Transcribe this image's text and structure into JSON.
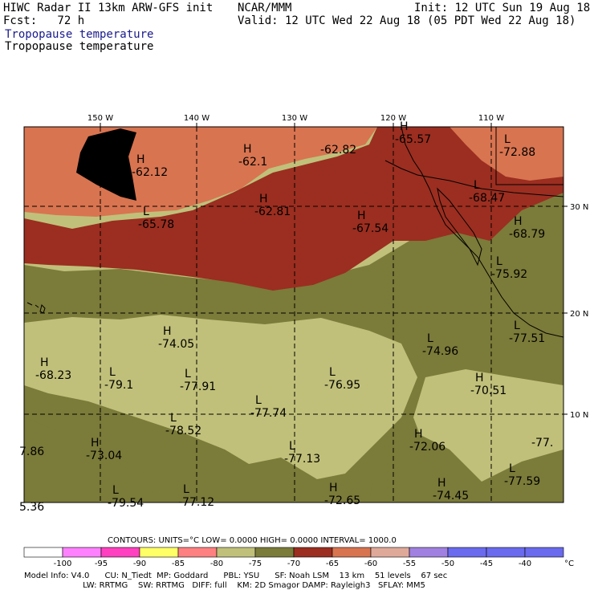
{
  "header": {
    "left_line1": "HIWC Radar II 13km ARW-GFS init",
    "left_line2": "Fcst:   72 h",
    "center_line1": "NCAR/MMM",
    "right_line1": "Init: 12 UTC Sun 19 Aug 18",
    "right_line2": "Valid: 12 UTC Wed 22 Aug 18 (05 PDT Wed 22 Aug 18)",
    "field_title_colored": "Tropopause temperature",
    "field_title_plain": "Tropopause temperature",
    "field_title_color": "#1a1a8c"
  },
  "axes": {
    "lon_labels": [
      "150 W",
      "140 W",
      "130 W",
      "120 W",
      "110 W"
    ],
    "lat_labels": [
      "30 N",
      "20 N",
      "10 N"
    ]
  },
  "extrema": [
    {
      "mark": "H",
      "value": "-62.12"
    },
    {
      "mark": "H",
      "value": "-62.1"
    },
    {
      "mark": "",
      "value": "-62.82"
    },
    {
      "mark": "H",
      "value": "-65.57"
    },
    {
      "mark": "L",
      "value": "-72.88"
    },
    {
      "mark": "L",
      "value": "-65.78"
    },
    {
      "mark": "H",
      "value": "-62.81"
    },
    {
      "mark": "H",
      "value": "-67.54"
    },
    {
      "mark": "L",
      "value": "-68.47"
    },
    {
      "mark": "H",
      "value": "-68.79"
    },
    {
      "mark": "L",
      "value": "-75.92"
    },
    {
      "mark": "H",
      "value": "-74.05"
    },
    {
      "mark": "L",
      "value": "-74.96"
    },
    {
      "mark": "L",
      "value": "-77.51"
    },
    {
      "mark": "H",
      "value": "-68.23"
    },
    {
      "mark": "L",
      "value": "-79.1"
    },
    {
      "mark": "L",
      "value": "-77.91"
    },
    {
      "mark": "L",
      "value": "-76.95"
    },
    {
      "mark": "H",
      "value": "-70.51"
    },
    {
      "mark": "L",
      "value": "-77.74"
    },
    {
      "mark": "L",
      "value": "-78.52"
    },
    {
      "mark": "H",
      "value": "-72.06"
    },
    {
      "mark": "",
      "value": "-77."
    },
    {
      "mark": "",
      "value": "7.86"
    },
    {
      "mark": "H",
      "value": "-73.04"
    },
    {
      "mark": "L",
      "value": "-77.13"
    },
    {
      "mark": "L",
      "value": "-77.59"
    },
    {
      "mark": "H",
      "value": "-74.45"
    },
    {
      "mark": "",
      "value": "5.36"
    },
    {
      "mark": "L",
      "value": "-79.54"
    },
    {
      "mark": "L",
      "value": "-77.12"
    },
    {
      "mark": "H",
      "value": "-72.65"
    }
  ],
  "colorbar": {
    "contours_line": "CONTOURS:  UNITS=°C  LOW=  0.0000      HIGH=  0.0000      INTERVAL=   1000.0",
    "unit_label": "°C",
    "tick_labels": [
      "-100",
      "-95",
      "-90",
      "-85",
      "-80",
      "-75",
      "-70",
      "-65",
      "-60",
      "-55",
      "-50",
      "-45",
      "-40"
    ],
    "colors": [
      "#ffffff",
      "#ff80ff",
      "#ff40c0",
      "#ffff66",
      "#ff8080",
      "#c0c07a",
      "#7b7b3a",
      "#9b2e20",
      "#d87450",
      "#dfa99a",
      "#a080e0",
      "#6a6aee",
      "#6a6aee",
      "#6a6aee"
    ]
  },
  "map_colors": {
    "above_m60": "#d87450",
    "m60_m65": "#dfa99a",
    "m65_m70": "#9b2e20",
    "m70_m75": "#7b7b3a",
    "m75_m80": "#c0c07a"
  },
  "footer": {
    "line1": "Model Info: V4.0      CU: N_Tiedt  MP: Goddard      PBL: YSU      SF: Noah LSM    13 km    51 levels    67 sec",
    "line2": "                       LW: RRTMG    SW: RRTMG   DIFF: full    KM: 2D Smagor DAMP: Rayleigh3   SFLAY: MM5"
  }
}
